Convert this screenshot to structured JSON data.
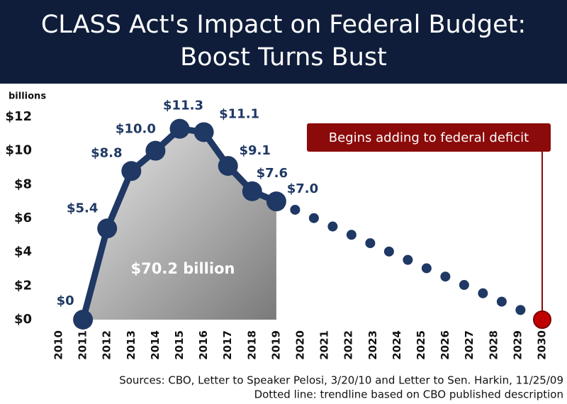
{
  "chart_data": {
    "type": "line",
    "title": [
      "CLASS Act's Impact on Federal Budget:",
      "Boost Turns Bust"
    ],
    "y_axis_label": "billions",
    "x": [
      2011,
      2012,
      2013,
      2014,
      2015,
      2016,
      2017,
      2018,
      2019
    ],
    "series": [
      {
        "color": "#1f3864",
        "values": [
          0,
          5.4,
          8.8,
          10.0,
          11.3,
          11.1,
          9.1,
          7.6,
          7.0
        ],
        "value_labels": [
          "$0",
          "$5.4",
          "$8.8",
          "$10.0",
          "$11.3",
          "$11.1",
          "$9.1",
          "$7.6",
          "$7.0"
        ]
      }
    ],
    "trend": {
      "x": [
        2019,
        2030
      ],
      "values": [
        7.0,
        0
      ],
      "color": "#1f3864",
      "end_color": "#c00000"
    },
    "area_label": "$70.2 billion",
    "annotation": "Begins adding to federal deficit",
    "annotation_color": "#8b0a0a",
    "xlim": [
      2010,
      2030
    ],
    "xticks": [
      2010,
      2011,
      2012,
      2013,
      2014,
      2015,
      2016,
      2017,
      2018,
      2019,
      2020,
      2021,
      2022,
      2023,
      2024,
      2025,
      2026,
      2027,
      2028,
      2029,
      2030
    ],
    "ylim": [
      0,
      12
    ],
    "yticks": [
      {
        "value": 0,
        "label": "$0"
      },
      {
        "value": 2,
        "label": "$2"
      },
      {
        "value": 4,
        "label": "$4"
      },
      {
        "value": 6,
        "label": "$6"
      },
      {
        "value": 8,
        "label": "$8"
      },
      {
        "value": 10,
        "label": "$10"
      },
      {
        "value": 12,
        "label": "$12"
      }
    ],
    "sources": [
      "Sources: CBO, Letter to Speaker Pelosi, 3/20/10 and Letter to Sen. Harkin, 11/25/09",
      "Dotted line: trendline based on CBO published description"
    ]
  }
}
